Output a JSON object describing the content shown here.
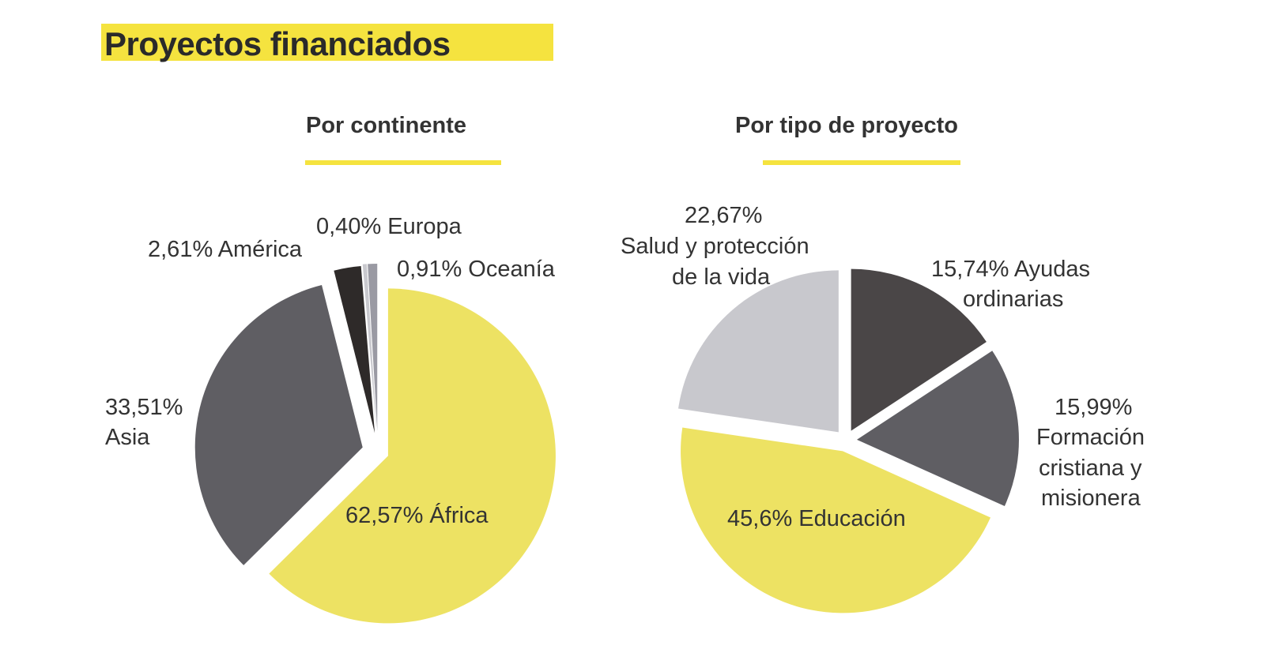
{
  "title": "Proyectos financiados",
  "chart_data": [
    {
      "type": "pie",
      "title": "Por continente",
      "slices": [
        {
          "label": "62,57% África",
          "name": "África",
          "value": 62.57,
          "color": "#ede263"
        },
        {
          "label": "33,51% Asia",
          "name": "Asia",
          "value": 33.51,
          "color": "#5f5e63"
        },
        {
          "label": "2,61% América",
          "name": "América",
          "value": 2.61,
          "color": "#2e2a29"
        },
        {
          "label": "0,40% Europa",
          "name": "Europa",
          "value": 0.4,
          "color": "#c9c9ce"
        },
        {
          "label": "0,91% Oceanía",
          "name": "Oceanía",
          "value": 0.91,
          "color": "#9a9aa3"
        }
      ]
    },
    {
      "type": "pie",
      "title": "Por tipo de proyecto",
      "slices": [
        {
          "label": "15,74% Ayudas ordinarias",
          "name": "Ayudas ordinarias",
          "value": 15.74,
          "color": "#4a4647"
        },
        {
          "label": "15,99% Formación cristiana y misionera",
          "name": "Formación cristiana y misionera",
          "value": 15.99,
          "color": "#5f5e63"
        },
        {
          "label": "45,6% Educación",
          "name": "Educación",
          "value": 45.6,
          "color": "#ede263"
        },
        {
          "label": "22,67% Salud y protección de la vida",
          "name": "Salud y protección de la vida",
          "value": 22.67,
          "color": "#c8c8cd"
        }
      ]
    }
  ],
  "labels": {
    "africa": "62,57% África",
    "asia_pct": "33,51%",
    "asia_name": "Asia",
    "america": "2,61% América",
    "europa": "0,40% Europa",
    "oceania": "0,91% Oceanía",
    "ayudas_1": "15,74% Ayudas",
    "ayudas_2": "ordinarias",
    "formacion_1": "15,99%",
    "formacion_2": "Formación",
    "formacion_3": "cristiana y",
    "formacion_4": "misionera",
    "educacion": "45,6% Educación",
    "salud_1": "22,67%",
    "salud_2": "Salud y protección",
    "salud_3": "de la vida"
  }
}
